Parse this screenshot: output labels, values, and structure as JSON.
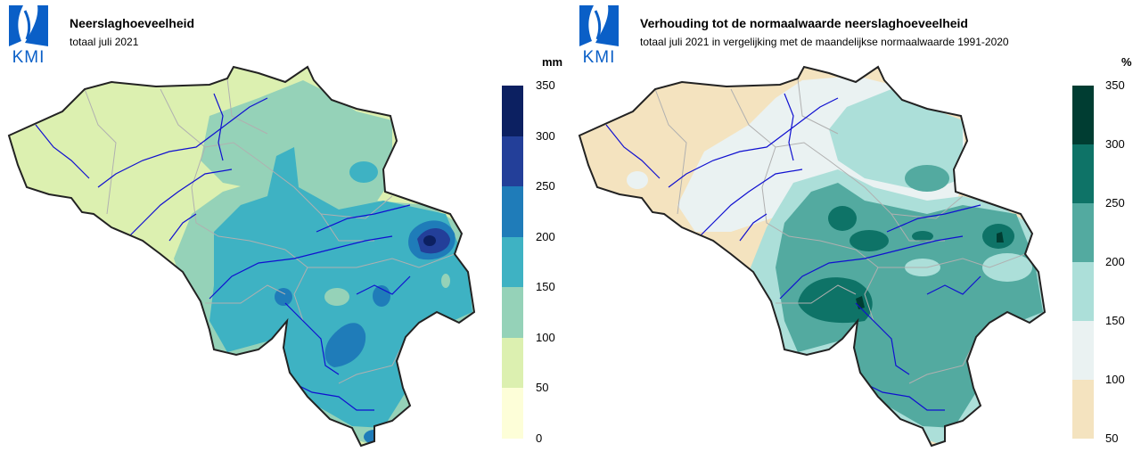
{
  "left_panel": {
    "logo_text": "KMI",
    "title": "Neerslaghoeveelheid",
    "subtitle": "totaal juli 2021",
    "unit": "mm",
    "legend": {
      "ticks": [
        "350",
        "300",
        "250",
        "200",
        "150",
        "100",
        "50",
        "0"
      ],
      "colors": [
        "#0c2061",
        "#233f99",
        "#1f7cb9",
        "#3eb2c3",
        "#95d2b8",
        "#dcf0b0",
        "#fdfed8"
      ]
    }
  },
  "right_panel": {
    "logo_text": "KMI",
    "title": "Verhouding tot de normaalwaarde neerslaghoeveelheid",
    "subtitle": "totaal juli 2021 in vergelijking met de maandelijkse normaalwaarde 1991-2020",
    "unit": "%",
    "legend": {
      "ticks": [
        "350",
        "300",
        "250",
        "200",
        "150",
        "100",
        "50"
      ],
      "colors": [
        "#003d32",
        "#0e7367",
        "#53aaa0",
        "#acdfd9",
        "#eaf2f2",
        "#f4e3bf"
      ]
    }
  },
  "colors": {
    "logo_blue": "#0a5fc7",
    "border": "#222222",
    "rivers": "#1010d0",
    "provinces": "#b0b0b0"
  }
}
